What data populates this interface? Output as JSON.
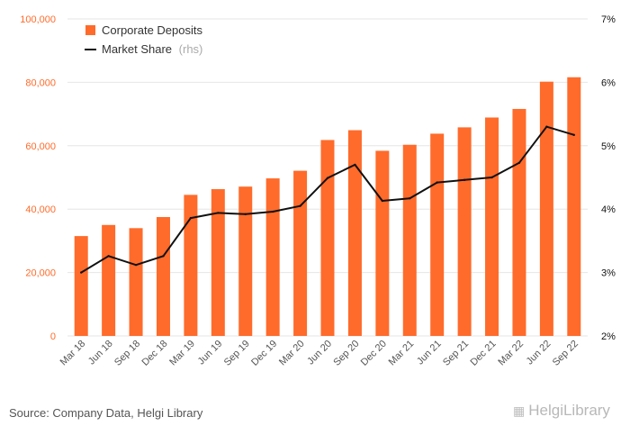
{
  "chart_data": {
    "type": "bar",
    "categories": [
      "Mar 18",
      "Jun 18",
      "Sep 18",
      "Dec 18",
      "Mar 19",
      "Jun 19",
      "Sep 19",
      "Dec 19",
      "Mar 20",
      "Jun 20",
      "Sep 20",
      "Dec 20",
      "Mar 21",
      "Jun 21",
      "Sep 21",
      "Dec 21",
      "Mar 22",
      "Jun 22",
      "Sep 22"
    ],
    "series": [
      {
        "name": "Corporate Deposits",
        "type": "bar",
        "axis": "left",
        "color": "#ff6b2b",
        "values": [
          31500,
          35000,
          34000,
          37500,
          44500,
          46300,
          47100,
          49700,
          52100,
          61800,
          64900,
          58400,
          60300,
          63800,
          65800,
          68900,
          71600,
          80200,
          81600
        ]
      },
      {
        "name": "Market Share",
        "note": "(rhs)",
        "type": "line",
        "axis": "right",
        "color": "#111111",
        "values": [
          3.0,
          3.26,
          3.12,
          3.26,
          3.86,
          3.94,
          3.92,
          3.96,
          4.05,
          4.49,
          4.7,
          4.13,
          4.17,
          4.42,
          4.46,
          4.5,
          4.73,
          5.3,
          5.17
        ]
      }
    ],
    "ylim": [
      0,
      100000
    ],
    "yticks": [
      0,
      20000,
      40000,
      60000,
      80000,
      100000
    ],
    "ytick_labels": [
      "0",
      "20,000",
      "40,000",
      "60,000",
      "80,000",
      "100,000"
    ],
    "y2lim": [
      2,
      7
    ],
    "y2ticks": [
      2,
      3,
      4,
      5,
      6,
      7
    ],
    "y2tick_labels": [
      "2%",
      "3%",
      "4%",
      "5%",
      "6%",
      "7%"
    ],
    "legend": "top-left",
    "grid": true
  },
  "footer": {
    "source": "Source: Company Data, Helgi Library",
    "logo": "HelgiLibrary"
  },
  "colors": {
    "left_axis": "#ff6b2b",
    "right_axis": "#111111",
    "grid": "#e6e6e6"
  }
}
